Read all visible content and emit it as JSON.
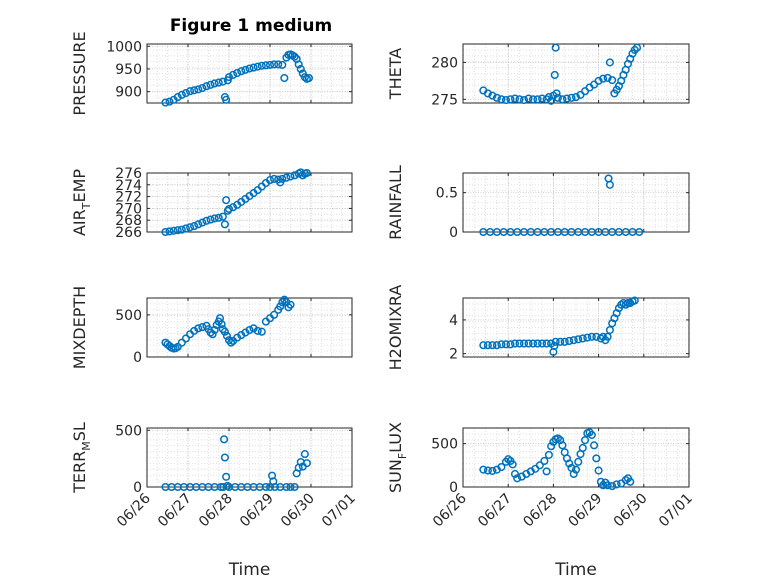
{
  "figure": {
    "title": "Figure 1 medium",
    "xlabel": "Time",
    "x_ticks": [
      "06/26",
      "06/27",
      "06/28",
      "06/29",
      "06/30",
      "07/01"
    ],
    "marker_color": "#0072BD",
    "grid": "major and minor, dotted",
    "marker": "open circle"
  },
  "chart_data": [
    {
      "type": "scatter",
      "id": "pressure",
      "ylabel": "PRESSURE",
      "ylim": [
        875,
        1005
      ],
      "yticks": [
        900,
        950,
        1000
      ],
      "points": [
        [
          0.45,
          876
        ],
        [
          0.55,
          878
        ],
        [
          0.65,
          882
        ],
        [
          0.75,
          888
        ],
        [
          0.85,
          893
        ],
        [
          0.95,
          897
        ],
        [
          1.05,
          901
        ],
        [
          1.15,
          903
        ],
        [
          1.25,
          905
        ],
        [
          1.35,
          908
        ],
        [
          1.45,
          912
        ],
        [
          1.55,
          915
        ],
        [
          1.65,
          918
        ],
        [
          1.75,
          920
        ],
        [
          1.85,
          922
        ],
        [
          1.9,
          888
        ],
        [
          1.93,
          882
        ],
        [
          1.97,
          925
        ],
        [
          2.0,
          932
        ],
        [
          2.1,
          937
        ],
        [
          2.2,
          941
        ],
        [
          2.3,
          945
        ],
        [
          2.4,
          948
        ],
        [
          2.5,
          951
        ],
        [
          2.6,
          953
        ],
        [
          2.7,
          955
        ],
        [
          2.8,
          957
        ],
        [
          2.9,
          958
        ],
        [
          3.0,
          959
        ],
        [
          3.1,
          960
        ],
        [
          3.2,
          960
        ],
        [
          3.3,
          959
        ],
        [
          3.35,
          930
        ],
        [
          3.4,
          975
        ],
        [
          3.45,
          981
        ],
        [
          3.5,
          982
        ],
        [
          3.55,
          980
        ],
        [
          3.6,
          977
        ],
        [
          3.65,
          972
        ],
        [
          3.7,
          960
        ],
        [
          3.75,
          950
        ],
        [
          3.8,
          940
        ],
        [
          3.85,
          932
        ],
        [
          3.9,
          928
        ],
        [
          3.95,
          930
        ]
      ],
      "xlabel": "",
      "x_tick_labels_shown": false
    },
    {
      "type": "scatter",
      "id": "theta",
      "ylabel": "THETA",
      "ylim": [
        274.5,
        282.5
      ],
      "yticks": [
        275,
        280
      ],
      "points": [
        [
          0.45,
          276.2
        ],
        [
          0.55,
          275.8
        ],
        [
          0.65,
          275.5
        ],
        [
          0.75,
          275.2
        ],
        [
          0.85,
          275.0
        ],
        [
          0.95,
          274.9
        ],
        [
          1.05,
          275.0
        ],
        [
          1.15,
          275.1
        ],
        [
          1.25,
          275.0
        ],
        [
          1.35,
          274.9
        ],
        [
          1.45,
          275.1
        ],
        [
          1.55,
          275.0
        ],
        [
          1.65,
          275.0
        ],
        [
          1.75,
          275.1
        ],
        [
          1.85,
          275.0
        ],
        [
          1.9,
          275.3
        ],
        [
          1.95,
          274.8
        ],
        [
          2.0,
          275.5
        ],
        [
          2.03,
          278.3
        ],
        [
          2.05,
          282.0
        ],
        [
          2.07,
          275.8
        ],
        [
          2.1,
          275.2
        ],
        [
          2.2,
          275.0
        ],
        [
          2.3,
          275.1
        ],
        [
          2.4,
          275.2
        ],
        [
          2.5,
          275.3
        ],
        [
          2.6,
          275.6
        ],
        [
          2.7,
          276.1
        ],
        [
          2.8,
          276.6
        ],
        [
          2.9,
          277.0
        ],
        [
          3.0,
          277.5
        ],
        [
          3.1,
          277.8
        ],
        [
          3.2,
          277.9
        ],
        [
          3.25,
          280.0
        ],
        [
          3.3,
          277.6
        ],
        [
          3.35,
          275.8
        ],
        [
          3.4,
          276.3
        ],
        [
          3.45,
          276.8
        ],
        [
          3.5,
          277.5
        ],
        [
          3.55,
          278.3
        ],
        [
          3.6,
          279.0
        ],
        [
          3.65,
          279.8
        ],
        [
          3.7,
          280.5
        ],
        [
          3.75,
          281.2
        ],
        [
          3.8,
          281.7
        ],
        [
          3.85,
          282.0
        ]
      ],
      "xlabel": "",
      "x_tick_labels_shown": false
    },
    {
      "type": "scatter",
      "id": "air_temp",
      "ylabel": "AIR_TEMP",
      "ylim": [
        266,
        276
      ],
      "yticks": [
        266,
        268,
        270,
        272,
        274,
        276
      ],
      "points": [
        [
          0.45,
          266.0
        ],
        [
          0.55,
          266.1
        ],
        [
          0.65,
          266.2
        ],
        [
          0.75,
          266.3
        ],
        [
          0.85,
          266.4
        ],
        [
          0.95,
          266.6
        ],
        [
          1.05,
          266.8
        ],
        [
          1.15,
          267.0
        ],
        [
          1.25,
          267.3
        ],
        [
          1.35,
          267.6
        ],
        [
          1.45,
          267.9
        ],
        [
          1.55,
          268.1
        ],
        [
          1.65,
          268.3
        ],
        [
          1.75,
          268.4
        ],
        [
          1.85,
          268.6
        ],
        [
          1.9,
          267.3
        ],
        [
          1.93,
          271.4
        ],
        [
          1.97,
          269.6
        ],
        [
          2.0,
          269.9
        ],
        [
          2.1,
          270.2
        ],
        [
          2.2,
          270.6
        ],
        [
          2.3,
          271.1
        ],
        [
          2.4,
          271.6
        ],
        [
          2.5,
          272.1
        ],
        [
          2.6,
          272.6
        ],
        [
          2.7,
          273.1
        ],
        [
          2.8,
          273.7
        ],
        [
          2.9,
          274.3
        ],
        [
          3.0,
          274.8
        ],
        [
          3.1,
          275.0
        ],
        [
          3.2,
          274.9
        ],
        [
          3.25,
          274.4
        ],
        [
          3.3,
          275.0
        ],
        [
          3.4,
          275.2
        ],
        [
          3.5,
          275.4
        ],
        [
          3.6,
          275.6
        ],
        [
          3.7,
          275.9
        ],
        [
          3.75,
          276.1
        ],
        [
          3.8,
          275.6
        ],
        [
          3.85,
          275.9
        ],
        [
          3.9,
          276.0
        ]
      ],
      "xlabel": "",
      "x_tick_labels_shown": false
    },
    {
      "type": "scatter",
      "id": "rainfall",
      "ylabel": "RAINFALL",
      "ylim": [
        0,
        0.75
      ],
      "yticks": [
        0,
        0.5
      ],
      "points": [
        [
          0.45,
          0
        ],
        [
          0.6,
          0
        ],
        [
          0.75,
          0
        ],
        [
          0.9,
          0
        ],
        [
          1.05,
          0
        ],
        [
          1.2,
          0
        ],
        [
          1.35,
          0
        ],
        [
          1.5,
          0
        ],
        [
          1.65,
          0
        ],
        [
          1.8,
          0
        ],
        [
          1.95,
          0
        ],
        [
          2.1,
          0
        ],
        [
          2.25,
          0
        ],
        [
          2.4,
          0
        ],
        [
          2.55,
          0
        ],
        [
          2.7,
          0
        ],
        [
          2.85,
          0
        ],
        [
          3.0,
          0
        ],
        [
          3.15,
          0
        ],
        [
          3.3,
          0
        ],
        [
          3.45,
          0
        ],
        [
          3.6,
          0
        ],
        [
          3.75,
          0
        ],
        [
          3.9,
          0
        ],
        [
          3.22,
          0.68
        ],
        [
          3.25,
          0.6
        ]
      ],
      "xlabel": "",
      "x_tick_labels_shown": false
    },
    {
      "type": "scatter",
      "id": "mixdepth",
      "ylabel": "MIXDEPTH",
      "ylim": [
        0,
        700
      ],
      "yticks": [
        0,
        500
      ],
      "points": [
        [
          0.45,
          170
        ],
        [
          0.5,
          150
        ],
        [
          0.55,
          130
        ],
        [
          0.6,
          110
        ],
        [
          0.65,
          100
        ],
        [
          0.7,
          105
        ],
        [
          0.75,
          120
        ],
        [
          0.85,
          170
        ],
        [
          0.95,
          220
        ],
        [
          1.05,
          270
        ],
        [
          1.15,
          310
        ],
        [
          1.25,
          340
        ],
        [
          1.35,
          355
        ],
        [
          1.45,
          370
        ],
        [
          1.5,
          330
        ],
        [
          1.55,
          290
        ],
        [
          1.6,
          270
        ],
        [
          1.65,
          320
        ],
        [
          1.7,
          380
        ],
        [
          1.75,
          420
        ],
        [
          1.78,
          460
        ],
        [
          1.82,
          390
        ],
        [
          1.85,
          330
        ],
        [
          1.9,
          300
        ],
        [
          1.95,
          250
        ],
        [
          2.0,
          200
        ],
        [
          2.05,
          170
        ],
        [
          2.1,
          190
        ],
        [
          2.2,
          230
        ],
        [
          2.3,
          260
        ],
        [
          2.4,
          290
        ],
        [
          2.5,
          320
        ],
        [
          2.6,
          340
        ],
        [
          2.7,
          310
        ],
        [
          2.8,
          300
        ],
        [
          2.9,
          420
        ],
        [
          3.0,
          460
        ],
        [
          3.1,
          500
        ],
        [
          3.2,
          560
        ],
        [
          3.25,
          600
        ],
        [
          3.3,
          650
        ],
        [
          3.35,
          680
        ],
        [
          3.4,
          650
        ],
        [
          3.45,
          590
        ],
        [
          3.5,
          620
        ]
      ],
      "xlabel": "",
      "x_tick_labels_shown": false
    },
    {
      "type": "scatter",
      "id": "h2omixra",
      "ylabel": "H2OMIXRA",
      "ylim": [
        1.8,
        5.3
      ],
      "yticks": [
        2,
        4
      ],
      "points": [
        [
          0.45,
          2.5
        ],
        [
          0.55,
          2.5
        ],
        [
          0.65,
          2.5
        ],
        [
          0.75,
          2.5
        ],
        [
          0.85,
          2.55
        ],
        [
          0.95,
          2.55
        ],
        [
          1.05,
          2.55
        ],
        [
          1.15,
          2.6
        ],
        [
          1.25,
          2.6
        ],
        [
          1.35,
          2.6
        ],
        [
          1.45,
          2.6
        ],
        [
          1.55,
          2.6
        ],
        [
          1.65,
          2.6
        ],
        [
          1.75,
          2.6
        ],
        [
          1.85,
          2.6
        ],
        [
          1.95,
          2.6
        ],
        [
          2.0,
          2.1
        ],
        [
          2.02,
          2.45
        ],
        [
          2.05,
          2.7
        ],
        [
          2.15,
          2.7
        ],
        [
          2.25,
          2.7
        ],
        [
          2.35,
          2.75
        ],
        [
          2.45,
          2.8
        ],
        [
          2.55,
          2.85
        ],
        [
          2.65,
          2.9
        ],
        [
          2.75,
          2.95
        ],
        [
          2.85,
          3.0
        ],
        [
          2.95,
          3.0
        ],
        [
          3.05,
          2.9
        ],
        [
          3.1,
          3.0
        ],
        [
          3.15,
          2.8
        ],
        [
          3.2,
          3.0
        ],
        [
          3.25,
          3.4
        ],
        [
          3.3,
          3.8
        ],
        [
          3.35,
          4.1
        ],
        [
          3.4,
          4.4
        ],
        [
          3.45,
          4.7
        ],
        [
          3.5,
          4.9
        ],
        [
          3.55,
          5.0
        ],
        [
          3.6,
          4.9
        ],
        [
          3.65,
          5.0
        ],
        [
          3.7,
          5.0
        ],
        [
          3.75,
          5.1
        ],
        [
          3.8,
          5.15
        ]
      ],
      "xlabel": "",
      "x_tick_labels_shown": false
    },
    {
      "type": "scatter",
      "id": "terr_msl",
      "ylabel": "TERR_MSL",
      "ylim": [
        0,
        520
      ],
      "yticks": [
        0,
        500
      ],
      "points": [
        [
          0.45,
          0
        ],
        [
          0.6,
          0
        ],
        [
          0.75,
          0
        ],
        [
          0.9,
          0
        ],
        [
          1.05,
          0
        ],
        [
          1.2,
          0
        ],
        [
          1.35,
          0
        ],
        [
          1.5,
          0
        ],
        [
          1.65,
          0
        ],
        [
          1.8,
          0
        ],
        [
          1.86,
          0
        ],
        [
          1.88,
          420
        ],
        [
          1.9,
          260
        ],
        [
          1.93,
          90
        ],
        [
          1.96,
          10
        ],
        [
          2.0,
          0
        ],
        [
          2.15,
          0
        ],
        [
          2.3,
          0
        ],
        [
          2.45,
          0
        ],
        [
          2.6,
          0
        ],
        [
          2.75,
          0
        ],
        [
          2.9,
          0
        ],
        [
          3.0,
          0
        ],
        [
          3.05,
          100
        ],
        [
          3.08,
          50
        ],
        [
          3.12,
          0
        ],
        [
          3.25,
          0
        ],
        [
          3.4,
          0
        ],
        [
          3.5,
          0
        ],
        [
          3.6,
          0
        ],
        [
          3.65,
          120
        ],
        [
          3.7,
          170
        ],
        [
          3.75,
          220
        ],
        [
          3.8,
          180
        ],
        [
          3.85,
          290
        ],
        [
          3.9,
          210
        ]
      ],
      "xlabel": "Time",
      "x_tick_labels_shown": true
    },
    {
      "type": "scatter",
      "id": "sun_flux",
      "ylabel": "SUN_FLUX",
      "ylim": [
        0,
        680
      ],
      "yticks": [
        0,
        500
      ],
      "points": [
        [
          0.45,
          200
        ],
        [
          0.55,
          190
        ],
        [
          0.65,
          185
        ],
        [
          0.75,
          200
        ],
        [
          0.85,
          230
        ],
        [
          0.95,
          290
        ],
        [
          1.0,
          320
        ],
        [
          1.05,
          300
        ],
        [
          1.1,
          260
        ],
        [
          1.15,
          150
        ],
        [
          1.2,
          100
        ],
        [
          1.3,
          120
        ],
        [
          1.4,
          150
        ],
        [
          1.5,
          180
        ],
        [
          1.6,
          210
        ],
        [
          1.7,
          250
        ],
        [
          1.8,
          300
        ],
        [
          1.85,
          180
        ],
        [
          1.9,
          370
        ],
        [
          1.95,
          470
        ],
        [
          2.0,
          520
        ],
        [
          2.05,
          550
        ],
        [
          2.1,
          560
        ],
        [
          2.15,
          540
        ],
        [
          2.2,
          480
        ],
        [
          2.25,
          400
        ],
        [
          2.3,
          330
        ],
        [
          2.35,
          270
        ],
        [
          2.4,
          220
        ],
        [
          2.45,
          150
        ],
        [
          2.5,
          200
        ],
        [
          2.55,
          290
        ],
        [
          2.6,
          380
        ],
        [
          2.65,
          450
        ],
        [
          2.7,
          540
        ],
        [
          2.75,
          620
        ],
        [
          2.8,
          630
        ],
        [
          2.85,
          600
        ],
        [
          2.9,
          480
        ],
        [
          2.95,
          330
        ],
        [
          3.0,
          190
        ],
        [
          3.05,
          60
        ],
        [
          3.1,
          20
        ],
        [
          3.15,
          50
        ],
        [
          3.2,
          20
        ],
        [
          3.3,
          10
        ],
        [
          3.4,
          30
        ],
        [
          3.5,
          40
        ],
        [
          3.6,
          80
        ],
        [
          3.65,
          100
        ],
        [
          3.7,
          60
        ]
      ],
      "xlabel": "Time",
      "x_tick_labels_shown": true
    }
  ]
}
